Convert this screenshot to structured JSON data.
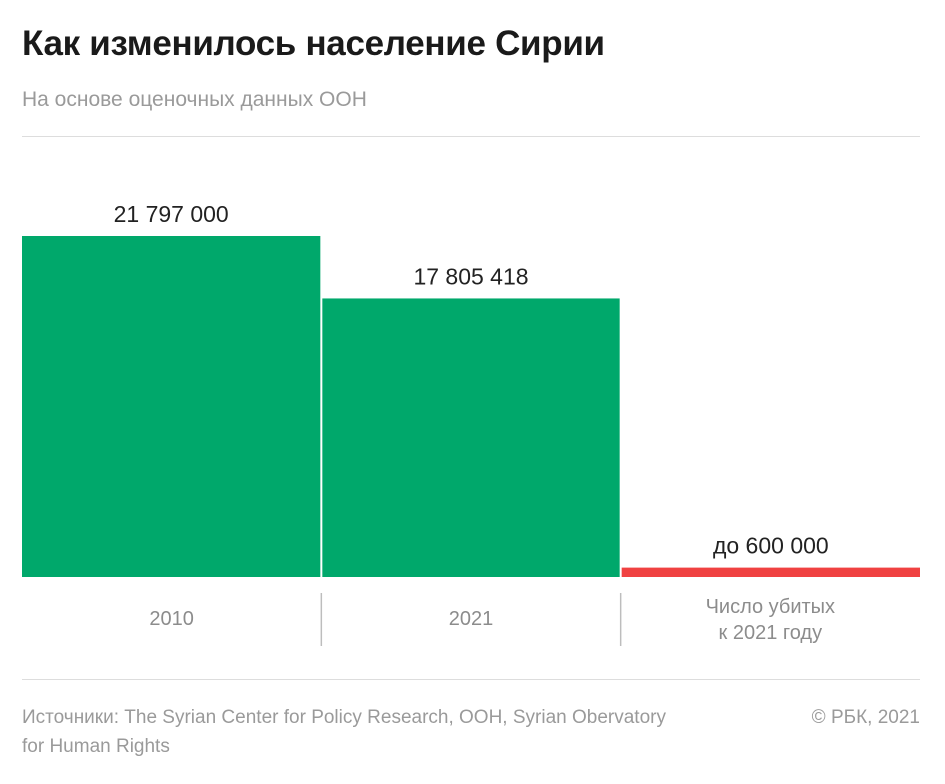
{
  "header": {
    "title": "Как изменилось население Сирии",
    "subtitle": "На основе оценочных данных ООН"
  },
  "chart_data": {
    "type": "bar",
    "title": "Как изменилось население Сирии",
    "subtitle": "На основе оценочных данных ООН",
    "categories": [
      "2010",
      "2021",
      "Число убитых к 2021 году"
    ],
    "category_lines": [
      [
        "2010"
      ],
      [
        "2021"
      ],
      [
        "Число убитых",
        "к 2021 году"
      ]
    ],
    "values": [
      21797000,
      17805418,
      600000
    ],
    "data_labels": [
      "21 797 000",
      "17 805 418",
      "до 600 000"
    ],
    "colors": [
      "#00a86b",
      "#00a86b",
      "#f04141"
    ],
    "xlabel": "",
    "ylabel": "",
    "ylim": [
      0,
      21797000
    ],
    "grid": false,
    "legend": "none"
  },
  "footer": {
    "source": "Источники: The Syrian Center for Policy Research, ООН, Syrian Obervatory for Human Rights",
    "copyright": "© РБК, 2021"
  }
}
